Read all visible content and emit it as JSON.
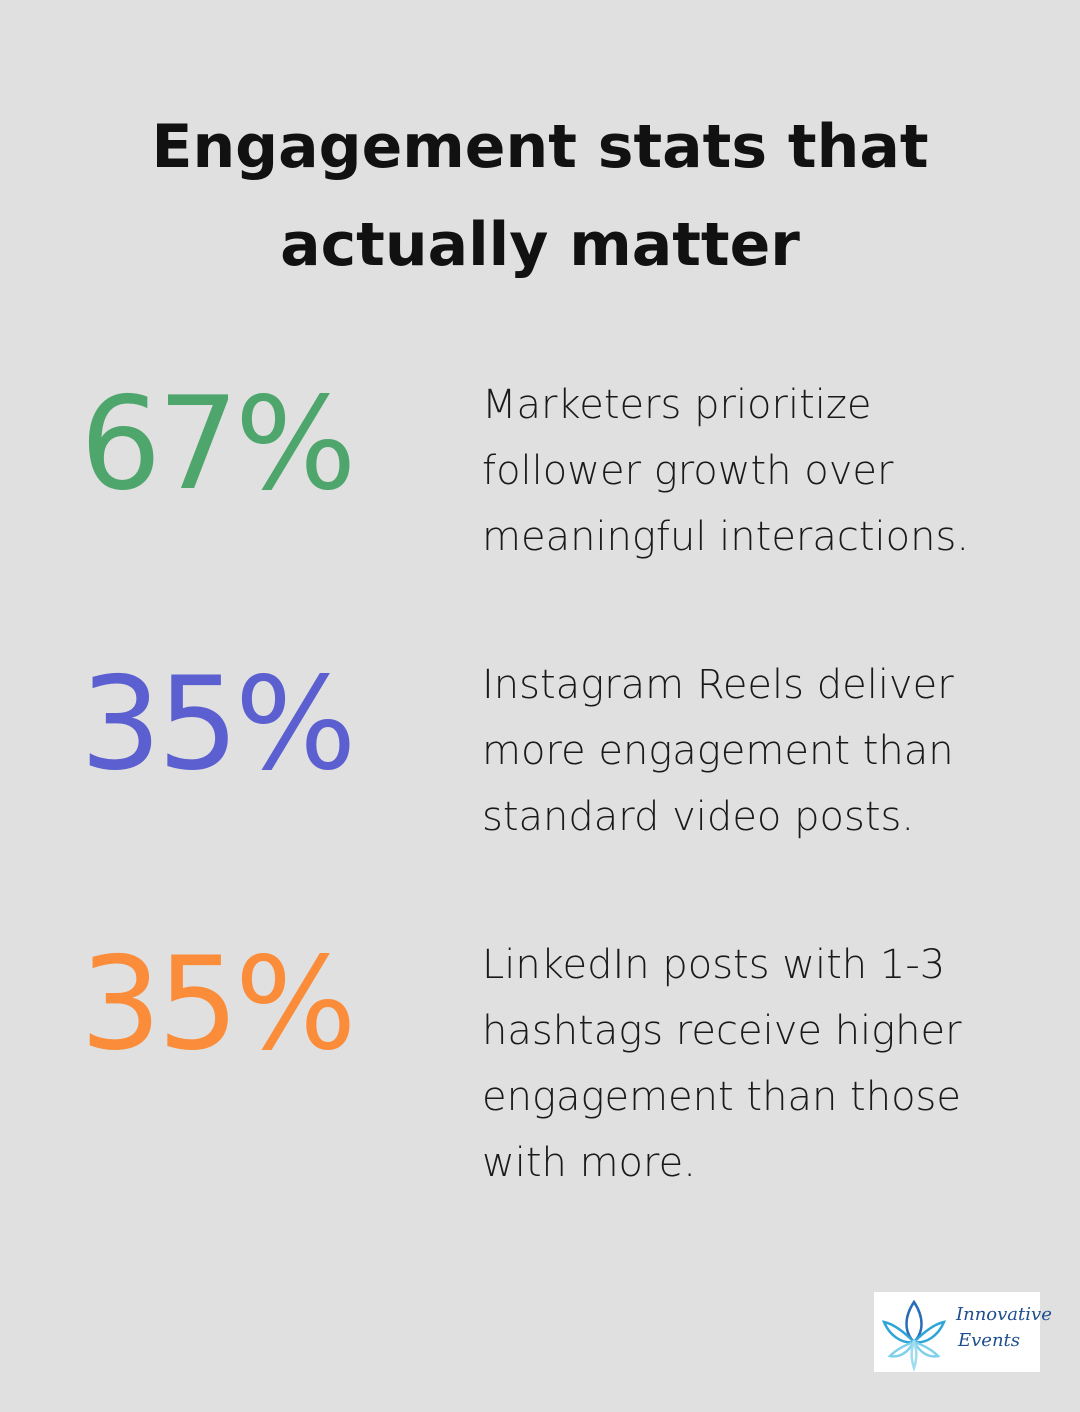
{
  "header": {
    "title_lines": [
      "Engagement stats that",
      "actually matter"
    ]
  },
  "stats": [
    {
      "value": "67%",
      "color": "#4fa66c",
      "lines": [
        "Marketers prioritize",
        "follower growth over",
        "meaningful interactions."
      ]
    },
    {
      "value": "35%",
      "color": "#5b5fd0",
      "lines": [
        "Instagram Reels deliver",
        "more engagement than",
        "standard video posts."
      ]
    },
    {
      "value": "35%",
      "color": "#fb8c3a",
      "lines": [
        "LinkedIn posts with 1-3",
        "hashtags receive higher",
        "engagement than those",
        "with more."
      ]
    }
  ],
  "logo": {
    "lines": [
      "Innovative",
      "Events"
    ]
  }
}
